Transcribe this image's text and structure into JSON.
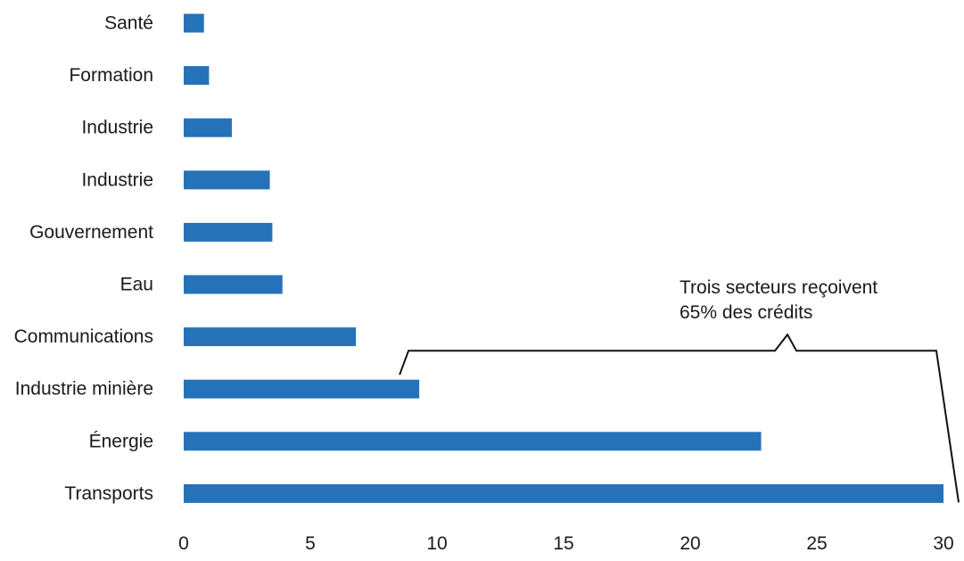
{
  "chart_data": {
    "type": "bar",
    "orientation": "horizontal",
    "title": "",
    "xlabel": "",
    "ylabel": "",
    "categories": [
      "Santé",
      "Formation",
      "Industrie",
      "Industrie",
      "Gouvernement",
      "Eau",
      "Communications",
      "Industrie minière",
      "Énergie",
      "Transports"
    ],
    "values": [
      0.8,
      1.0,
      1.9,
      3.4,
      3.5,
      3.9,
      6.8,
      9.3,
      22.8,
      30.0
    ],
    "xlim": [
      0,
      30
    ],
    "xticks": [
      "0",
      "5",
      "10",
      "15",
      "20",
      "25",
      "30"
    ],
    "grid": false,
    "bar_color": "#2672b9",
    "annotation": {
      "lines": [
        "Trois secteurs reçoivent",
        "65% des crédits"
      ],
      "bracket_categories": [
        "Industrie minière",
        "Énergie",
        "Transports"
      ]
    }
  }
}
